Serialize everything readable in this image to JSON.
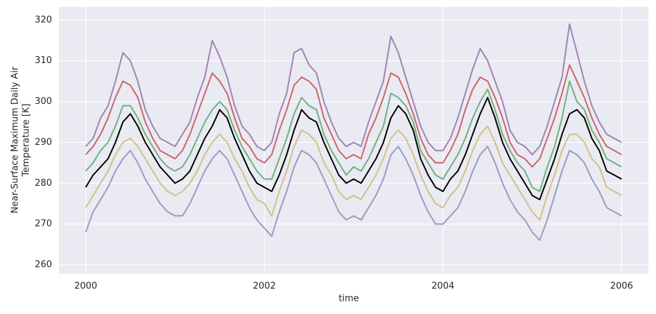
{
  "chart_data": {
    "type": "line",
    "xlabel": "time",
    "ylabel": [
      "Near-Surface Maximum Daily Air",
      "Temperature [K]"
    ],
    "x": [
      2000,
      2000.083,
      2000.167,
      2000.25,
      2000.333,
      2000.417,
      2000.5,
      2000.583,
      2000.667,
      2000.75,
      2000.833,
      2000.917,
      2001,
      2001.083,
      2001.167,
      2001.25,
      2001.333,
      2001.417,
      2001.5,
      2001.583,
      2001.667,
      2001.75,
      2001.833,
      2001.917,
      2002,
      2002.083,
      2002.167,
      2002.25,
      2002.333,
      2002.417,
      2002.5,
      2002.583,
      2002.667,
      2002.75,
      2002.833,
      2002.917,
      2003,
      2003.083,
      2003.167,
      2003.25,
      2003.333,
      2003.417,
      2003.5,
      2003.583,
      2003.667,
      2003.75,
      2003.833,
      2003.917,
      2004,
      2004.083,
      2004.167,
      2004.25,
      2004.333,
      2004.417,
      2004.5,
      2004.583,
      2004.667,
      2004.75,
      2004.833,
      2004.917,
      2005,
      2005.083,
      2005.167,
      2005.25,
      2005.333,
      2005.417,
      2005.5,
      2005.583,
      2005.667,
      2005.75,
      2005.833,
      2005.917,
      2006
    ],
    "series": [
      {
        "color": "#8c8cbd",
        "values": [
          268,
          273,
          276,
          279,
          283,
          286,
          288,
          285,
          281,
          278,
          275,
          273,
          272,
          272,
          275,
          279,
          283,
          286,
          288,
          286,
          282,
          278,
          274,
          271,
          269,
          267,
          273,
          278,
          284,
          288,
          287,
          285,
          281,
          277,
          273,
          271,
          272,
          271,
          274,
          277,
          281,
          287,
          289,
          286,
          282,
          277,
          273,
          270,
          270,
          272,
          274,
          278,
          283,
          287,
          289,
          285,
          280,
          276,
          273,
          271,
          268,
          266,
          271,
          277,
          283,
          288,
          287,
          285,
          281,
          278,
          274,
          273,
          272
        ]
      },
      {
        "color": "#ccb974",
        "values": [
          274,
          277,
          280,
          283,
          287,
          290,
          291,
          289,
          286,
          283,
          280,
          278,
          277,
          278,
          280,
          283,
          287,
          290,
          292,
          290,
          286,
          283,
          279,
          276,
          275,
          272,
          278,
          283,
          289,
          293,
          292,
          290,
          285,
          282,
          278,
          276,
          277,
          276,
          279,
          282,
          286,
          291,
          293,
          291,
          287,
          282,
          278,
          275,
          274,
          277,
          279,
          283,
          288,
          292,
          294,
          290,
          285,
          282,
          279,
          276,
          273,
          271,
          277,
          282,
          288,
          292,
          292,
          290,
          286,
          284,
          279,
          278,
          277
        ]
      },
      {
        "color": "#55a868",
        "values": [
          283,
          285,
          288,
          290,
          294,
          299,
          299,
          296,
          292,
          289,
          286,
          284,
          283,
          284,
          287,
          291,
          295,
          298,
          300,
          298,
          293,
          289,
          286,
          283,
          281,
          281,
          286,
          291,
          297,
          301,
          299,
          298,
          292,
          288,
          285,
          282,
          284,
          283,
          286,
          290,
          294,
          302,
          301,
          299,
          295,
          288,
          285,
          282,
          281,
          284,
          287,
          291,
          296,
          300,
          303,
          298,
          292,
          288,
          285,
          283,
          279,
          278,
          284,
          289,
          296,
          305,
          300,
          298,
          293,
          290,
          286,
          285,
          284
        ]
      },
      {
        "color": "#c44e52",
        "values": [
          287,
          289,
          292,
          296,
          301,
          305,
          304,
          301,
          295,
          291,
          288,
          287,
          286,
          288,
          292,
          297,
          302,
          307,
          305,
          302,
          296,
          291,
          289,
          286,
          285,
          287,
          293,
          298,
          304,
          306,
          305,
          303,
          296,
          292,
          288,
          286,
          287,
          286,
          292,
          296,
          301,
          307,
          306,
          302,
          297,
          291,
          287,
          285,
          285,
          288,
          292,
          298,
          303,
          306,
          305,
          301,
          296,
          290,
          287,
          286,
          284,
          286,
          291,
          296,
          302,
          309,
          305,
          301,
          296,
          292,
          289,
          288,
          287
        ]
      },
      {
        "color": "#9370a8",
        "values": [
          289,
          291,
          296,
          299,
          305,
          312,
          310,
          305,
          298,
          294,
          291,
          290,
          289,
          292,
          295,
          301,
          306,
          315,
          311,
          306,
          299,
          294,
          292,
          289,
          288,
          290,
          297,
          302,
          312,
          313,
          309,
          307,
          300,
          295,
          291,
          289,
          290,
          289,
          295,
          300,
          305,
          316,
          312,
          306,
          300,
          294,
          290,
          288,
          288,
          291,
          296,
          302,
          308,
          313,
          310,
          305,
          300,
          293,
          290,
          289,
          287,
          289,
          294,
          300,
          306,
          319,
          312,
          305,
          299,
          295,
          292,
          291,
          290
        ]
      },
      {
        "color": "#000000",
        "values": [
          279,
          282,
          284,
          286,
          290,
          295,
          297,
          294,
          290,
          287,
          284,
          282,
          280,
          281,
          283,
          287,
          291,
          294,
          298,
          296,
          291,
          287,
          283,
          280,
          279,
          278,
          282,
          287,
          293,
          298,
          296,
          295,
          290,
          286,
          282,
          280,
          281,
          280,
          283,
          286,
          290,
          296,
          299,
          297,
          293,
          286,
          282,
          279,
          278,
          281,
          283,
          287,
          292,
          297,
          301,
          296,
          290,
          286,
          283,
          280,
          277,
          276,
          281,
          286,
          292,
          297,
          298,
          296,
          291,
          288,
          283,
          282,
          281
        ]
      }
    ],
    "xlim": [
      1999.7,
      2006.3
    ],
    "xticks": [
      2000,
      2002,
      2004,
      2006
    ],
    "ylim": [
      257.8,
      323.2
    ],
    "yticks": [
      260,
      270,
      280,
      290,
      300,
      310,
      320
    ],
    "grid": true
  }
}
